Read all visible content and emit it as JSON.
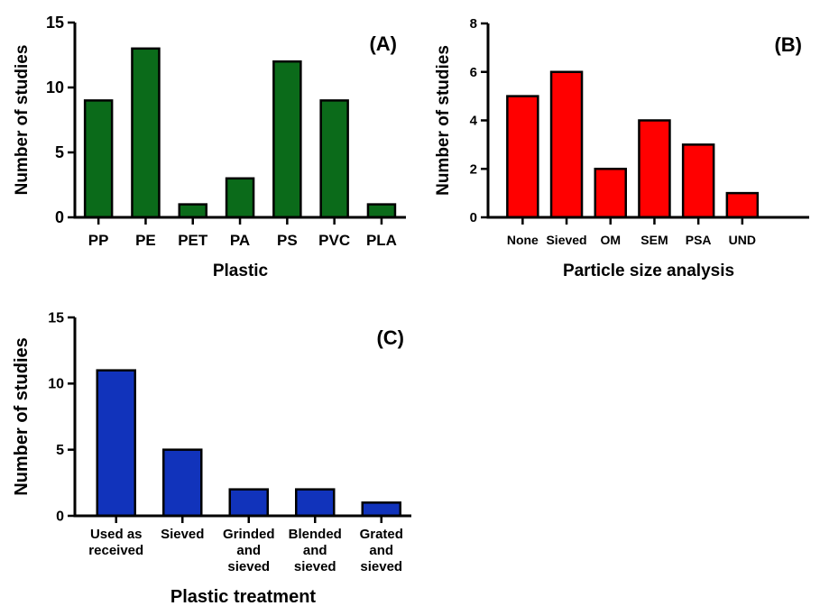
{
  "chart_data": [
    {
      "type": "bar",
      "panel": "(A)",
      "xlabel": "Plastic",
      "ylabel": "Number of studies",
      "categories": [
        "PP",
        "PE",
        "PET",
        "PA",
        "PS",
        "PVC",
        "PLA"
      ],
      "values": [
        9,
        13,
        1,
        3,
        12,
        9,
        1
      ],
      "ylim": [
        0,
        15
      ],
      "yticks": [
        "0",
        "5",
        "10",
        "15"
      ],
      "color": "#0b6b1a",
      "grid": false
    },
    {
      "type": "bar",
      "panel": "(B)",
      "xlabel": "Particle size analysis",
      "ylabel": "Number of studies",
      "categories": [
        "None",
        "Sieved",
        "OM",
        "SEM",
        "PSA",
        "UND"
      ],
      "values": [
        5,
        6,
        2,
        4,
        3,
        1
      ],
      "ylim": [
        0,
        8
      ],
      "yticks": [
        "0",
        "2",
        "4",
        "6",
        "8"
      ],
      "color": "#ff0000",
      "grid": false
    },
    {
      "type": "bar",
      "panel": "(C)",
      "xlabel": "Plastic treatment",
      "ylabel": "Number of studies",
      "categories": [
        [
          "Used as",
          "received"
        ],
        [
          "Sieved"
        ],
        [
          "Grinded",
          "and",
          "sieved"
        ],
        [
          "Blended",
          "and",
          "sieved"
        ],
        [
          "Grated",
          "and",
          "sieved"
        ]
      ],
      "values": [
        11,
        5,
        2,
        2,
        1
      ],
      "ylim": [
        0,
        15
      ],
      "yticks": [
        "0",
        "5",
        "10",
        "15"
      ],
      "color": "#1133bb",
      "grid": false
    }
  ]
}
